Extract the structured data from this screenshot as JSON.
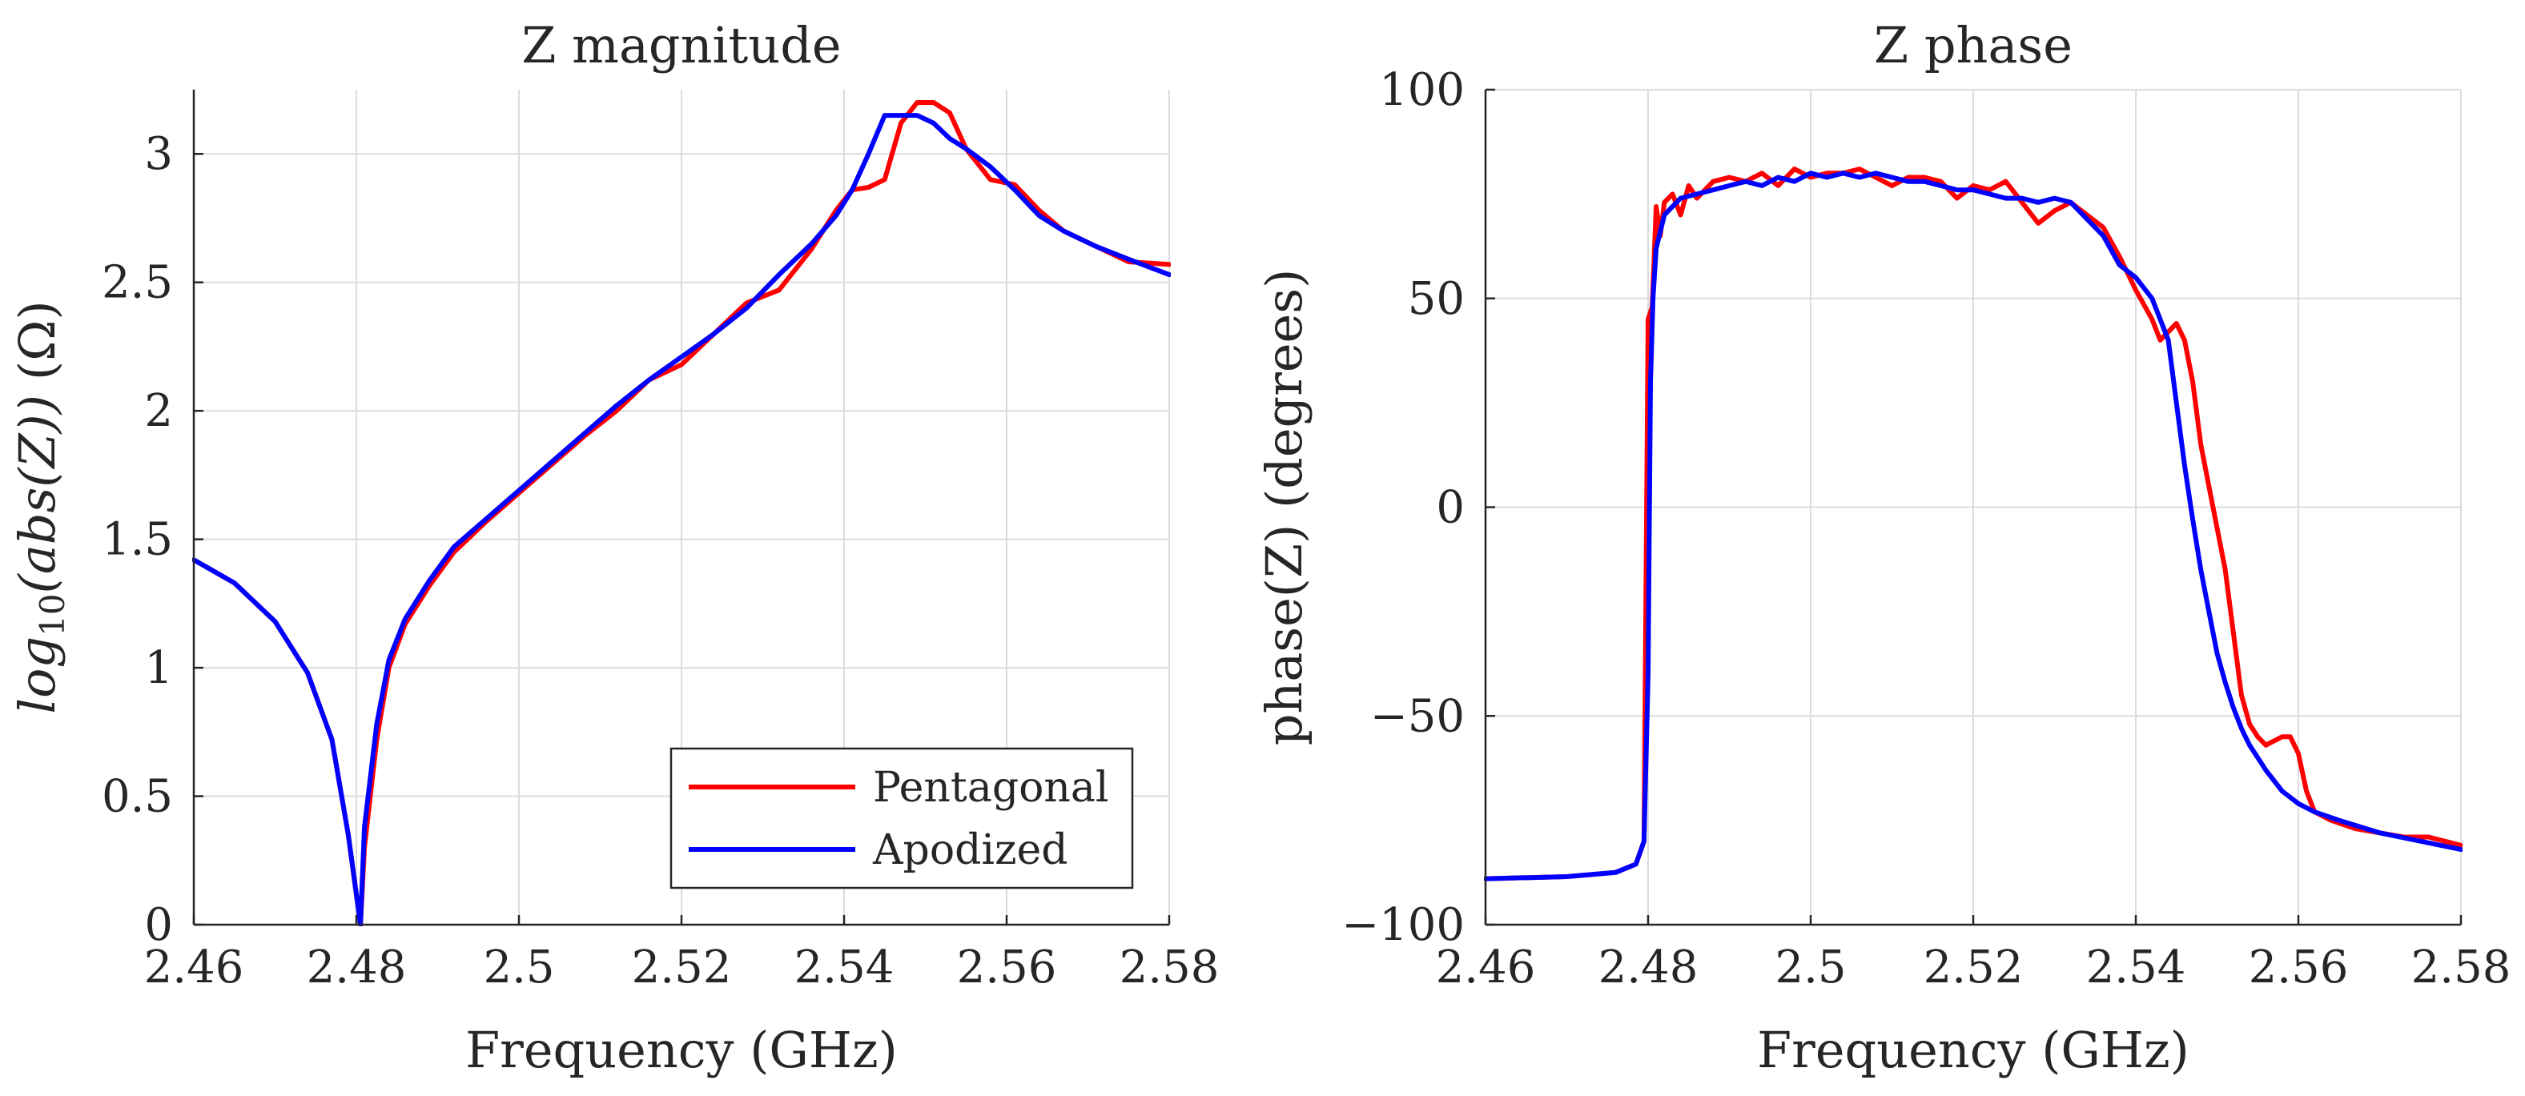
{
  "chart_data": [
    {
      "type": "line",
      "title": "Z magnitude",
      "xlabel": "Frequency (GHz)",
      "ylabel": "log10(abs(Z)) (Ω)",
      "ylabel_parts": {
        "func": "log",
        "sub": "10",
        "arg": "(abs(Z))",
        "unit": "(Ω)"
      },
      "xlim": [
        2.46,
        2.58
      ],
      "ylim": [
        0,
        3.25
      ],
      "xticks": [
        2.46,
        2.48,
        2.5,
        2.52,
        2.54,
        2.56,
        2.58
      ],
      "xtick_labels": [
        "2.46",
        "2.48",
        "2.5",
        "2.52",
        "2.54",
        "2.56",
        "2.58"
      ],
      "yticks": [
        0,
        0.5,
        1,
        1.5,
        2,
        2.5,
        3
      ],
      "ytick_labels": [
        "0",
        "0.5",
        "1",
        "1.5",
        "2",
        "2.5",
        "3"
      ],
      "grid": true,
      "legend": {
        "location": "bottom-right",
        "entries": [
          {
            "name": "Pentagonal",
            "color": "#ff0000"
          },
          {
            "name": "Apodized",
            "color": "#0000ff"
          }
        ]
      },
      "series": [
        {
          "name": "Pentagonal",
          "color": "#ff0000",
          "x": [
            2.46,
            2.465,
            2.47,
            2.474,
            2.477,
            2.479,
            2.4805,
            2.481,
            2.4825,
            2.484,
            2.486,
            2.489,
            2.492,
            2.496,
            2.5,
            2.504,
            2.508,
            2.512,
            2.516,
            2.52,
            2.524,
            2.528,
            2.532,
            2.536,
            2.539,
            2.541,
            2.543,
            2.545,
            2.547,
            2.549,
            2.551,
            2.553,
            2.555,
            2.558,
            2.561,
            2.564,
            2.567,
            2.571,
            2.575,
            2.58
          ],
          "y": [
            1.42,
            1.33,
            1.18,
            0.98,
            0.72,
            0.35,
            0.0,
            0.3,
            0.72,
            1.0,
            1.17,
            1.32,
            1.45,
            1.57,
            1.68,
            1.79,
            1.9,
            2.0,
            2.12,
            2.18,
            2.3,
            2.42,
            2.47,
            2.63,
            2.78,
            2.86,
            2.87,
            2.9,
            3.12,
            3.2,
            3.2,
            3.16,
            3.02,
            2.9,
            2.88,
            2.78,
            2.7,
            2.64,
            2.58,
            2.57
          ]
        },
        {
          "name": "Apodized",
          "color": "#0000ff",
          "x": [
            2.46,
            2.465,
            2.47,
            2.474,
            2.477,
            2.479,
            2.4805,
            2.481,
            2.4825,
            2.484,
            2.486,
            2.489,
            2.492,
            2.496,
            2.5,
            2.504,
            2.508,
            2.512,
            2.516,
            2.52,
            2.524,
            2.528,
            2.532,
            2.536,
            2.539,
            2.541,
            2.543,
            2.545,
            2.547,
            2.549,
            2.551,
            2.553,
            2.555,
            2.558,
            2.561,
            2.564,
            2.567,
            2.571,
            2.575,
            2.58
          ],
          "y": [
            1.42,
            1.33,
            1.18,
            0.98,
            0.72,
            0.35,
            0.0,
            0.38,
            0.78,
            1.03,
            1.19,
            1.34,
            1.47,
            1.58,
            1.69,
            1.8,
            1.91,
            2.02,
            2.12,
            2.21,
            2.3,
            2.4,
            2.53,
            2.65,
            2.76,
            2.86,
            3.0,
            3.15,
            3.15,
            3.15,
            3.12,
            3.06,
            3.02,
            2.95,
            2.86,
            2.76,
            2.7,
            2.64,
            2.59,
            2.53
          ]
        }
      ]
    },
    {
      "type": "line",
      "title": "Z phase",
      "xlabel": "Frequency (GHz)",
      "ylabel": "phase(Z)  (degrees)",
      "xlim": [
        2.46,
        2.58
      ],
      "ylim": [
        -100,
        100
      ],
      "xticks": [
        2.46,
        2.48,
        2.5,
        2.52,
        2.54,
        2.56,
        2.58
      ],
      "xtick_labels": [
        "2.46",
        "2.48",
        "2.5",
        "2.52",
        "2.54",
        "2.56",
        "2.58"
      ],
      "yticks": [
        -100,
        -50,
        0,
        50,
        100
      ],
      "ytick_labels": [
        "−100",
        "−50",
        "0",
        "50",
        "100"
      ],
      "grid": true,
      "series": [
        {
          "name": "Pentagonal",
          "color": "#ff0000",
          "x": [
            2.46,
            2.47,
            2.476,
            2.4785,
            2.4795,
            2.48,
            2.4805,
            2.481,
            2.4815,
            2.482,
            2.483,
            2.484,
            2.485,
            2.486,
            2.488,
            2.49,
            2.492,
            2.494,
            2.496,
            2.498,
            2.5,
            2.502,
            2.504,
            2.506,
            2.508,
            2.51,
            2.512,
            2.514,
            2.516,
            2.518,
            2.52,
            2.522,
            2.524,
            2.526,
            2.528,
            2.53,
            2.532,
            2.534,
            2.536,
            2.538,
            2.54,
            2.542,
            2.543,
            2.544,
            2.545,
            2.546,
            2.547,
            2.548,
            2.549,
            2.55,
            2.551,
            2.552,
            2.553,
            2.554,
            2.555,
            2.556,
            2.557,
            2.558,
            2.559,
            2.56,
            2.561,
            2.562,
            2.564,
            2.567,
            2.57,
            2.573,
            2.576,
            2.578,
            2.58
          ],
          "y": [
            -89,
            -88.5,
            -87.5,
            -85.5,
            -80,
            45,
            48,
            72,
            65,
            73,
            75,
            70,
            77,
            74,
            78,
            79,
            78,
            80,
            77,
            81,
            79,
            80,
            80,
            81,
            79,
            77,
            79,
            79,
            78,
            74,
            77,
            76,
            78,
            73,
            68,
            71,
            73,
            70,
            67,
            60,
            52,
            45,
            40,
            42,
            44,
            40,
            30,
            15,
            5,
            -5,
            -15,
            -30,
            -45,
            -52,
            -55,
            -57,
            -56,
            -55,
            -55,
            -59,
            -68,
            -73,
            -75,
            -77,
            -78,
            -79,
            -79,
            -80,
            -81
          ]
        },
        {
          "name": "Apodized",
          "color": "#0000ff",
          "x": [
            2.46,
            2.47,
            2.476,
            2.4785,
            2.4795,
            2.48,
            2.4803,
            2.4806,
            2.481,
            2.482,
            2.484,
            2.486,
            2.488,
            2.49,
            2.492,
            2.494,
            2.496,
            2.498,
            2.5,
            2.502,
            2.504,
            2.506,
            2.508,
            2.51,
            2.512,
            2.514,
            2.516,
            2.518,
            2.52,
            2.522,
            2.524,
            2.526,
            2.528,
            2.53,
            2.532,
            2.534,
            2.536,
            2.538,
            2.54,
            2.542,
            2.544,
            2.545,
            2.546,
            2.547,
            2.548,
            2.549,
            2.55,
            2.551,
            2.552,
            2.553,
            2.554,
            2.555,
            2.556,
            2.558,
            2.56,
            2.562,
            2.565,
            2.57,
            2.575,
            2.58
          ],
          "y": [
            -89,
            -88.5,
            -87.5,
            -85.5,
            -80,
            -40,
            30,
            50,
            62,
            70,
            74,
            75,
            76,
            77,
            78,
            77,
            79,
            78,
            80,
            79,
            80,
            79,
            80,
            79,
            78,
            78,
            77,
            76,
            76,
            75,
            74,
            74,
            73,
            74,
            73,
            69,
            65,
            58,
            55,
            50,
            40,
            25,
            10,
            -3,
            -15,
            -25,
            -35,
            -42,
            -48,
            -53,
            -57,
            -60,
            -63,
            -68,
            -71,
            -73,
            -75,
            -78,
            -80,
            -82
          ]
        }
      ]
    }
  ]
}
